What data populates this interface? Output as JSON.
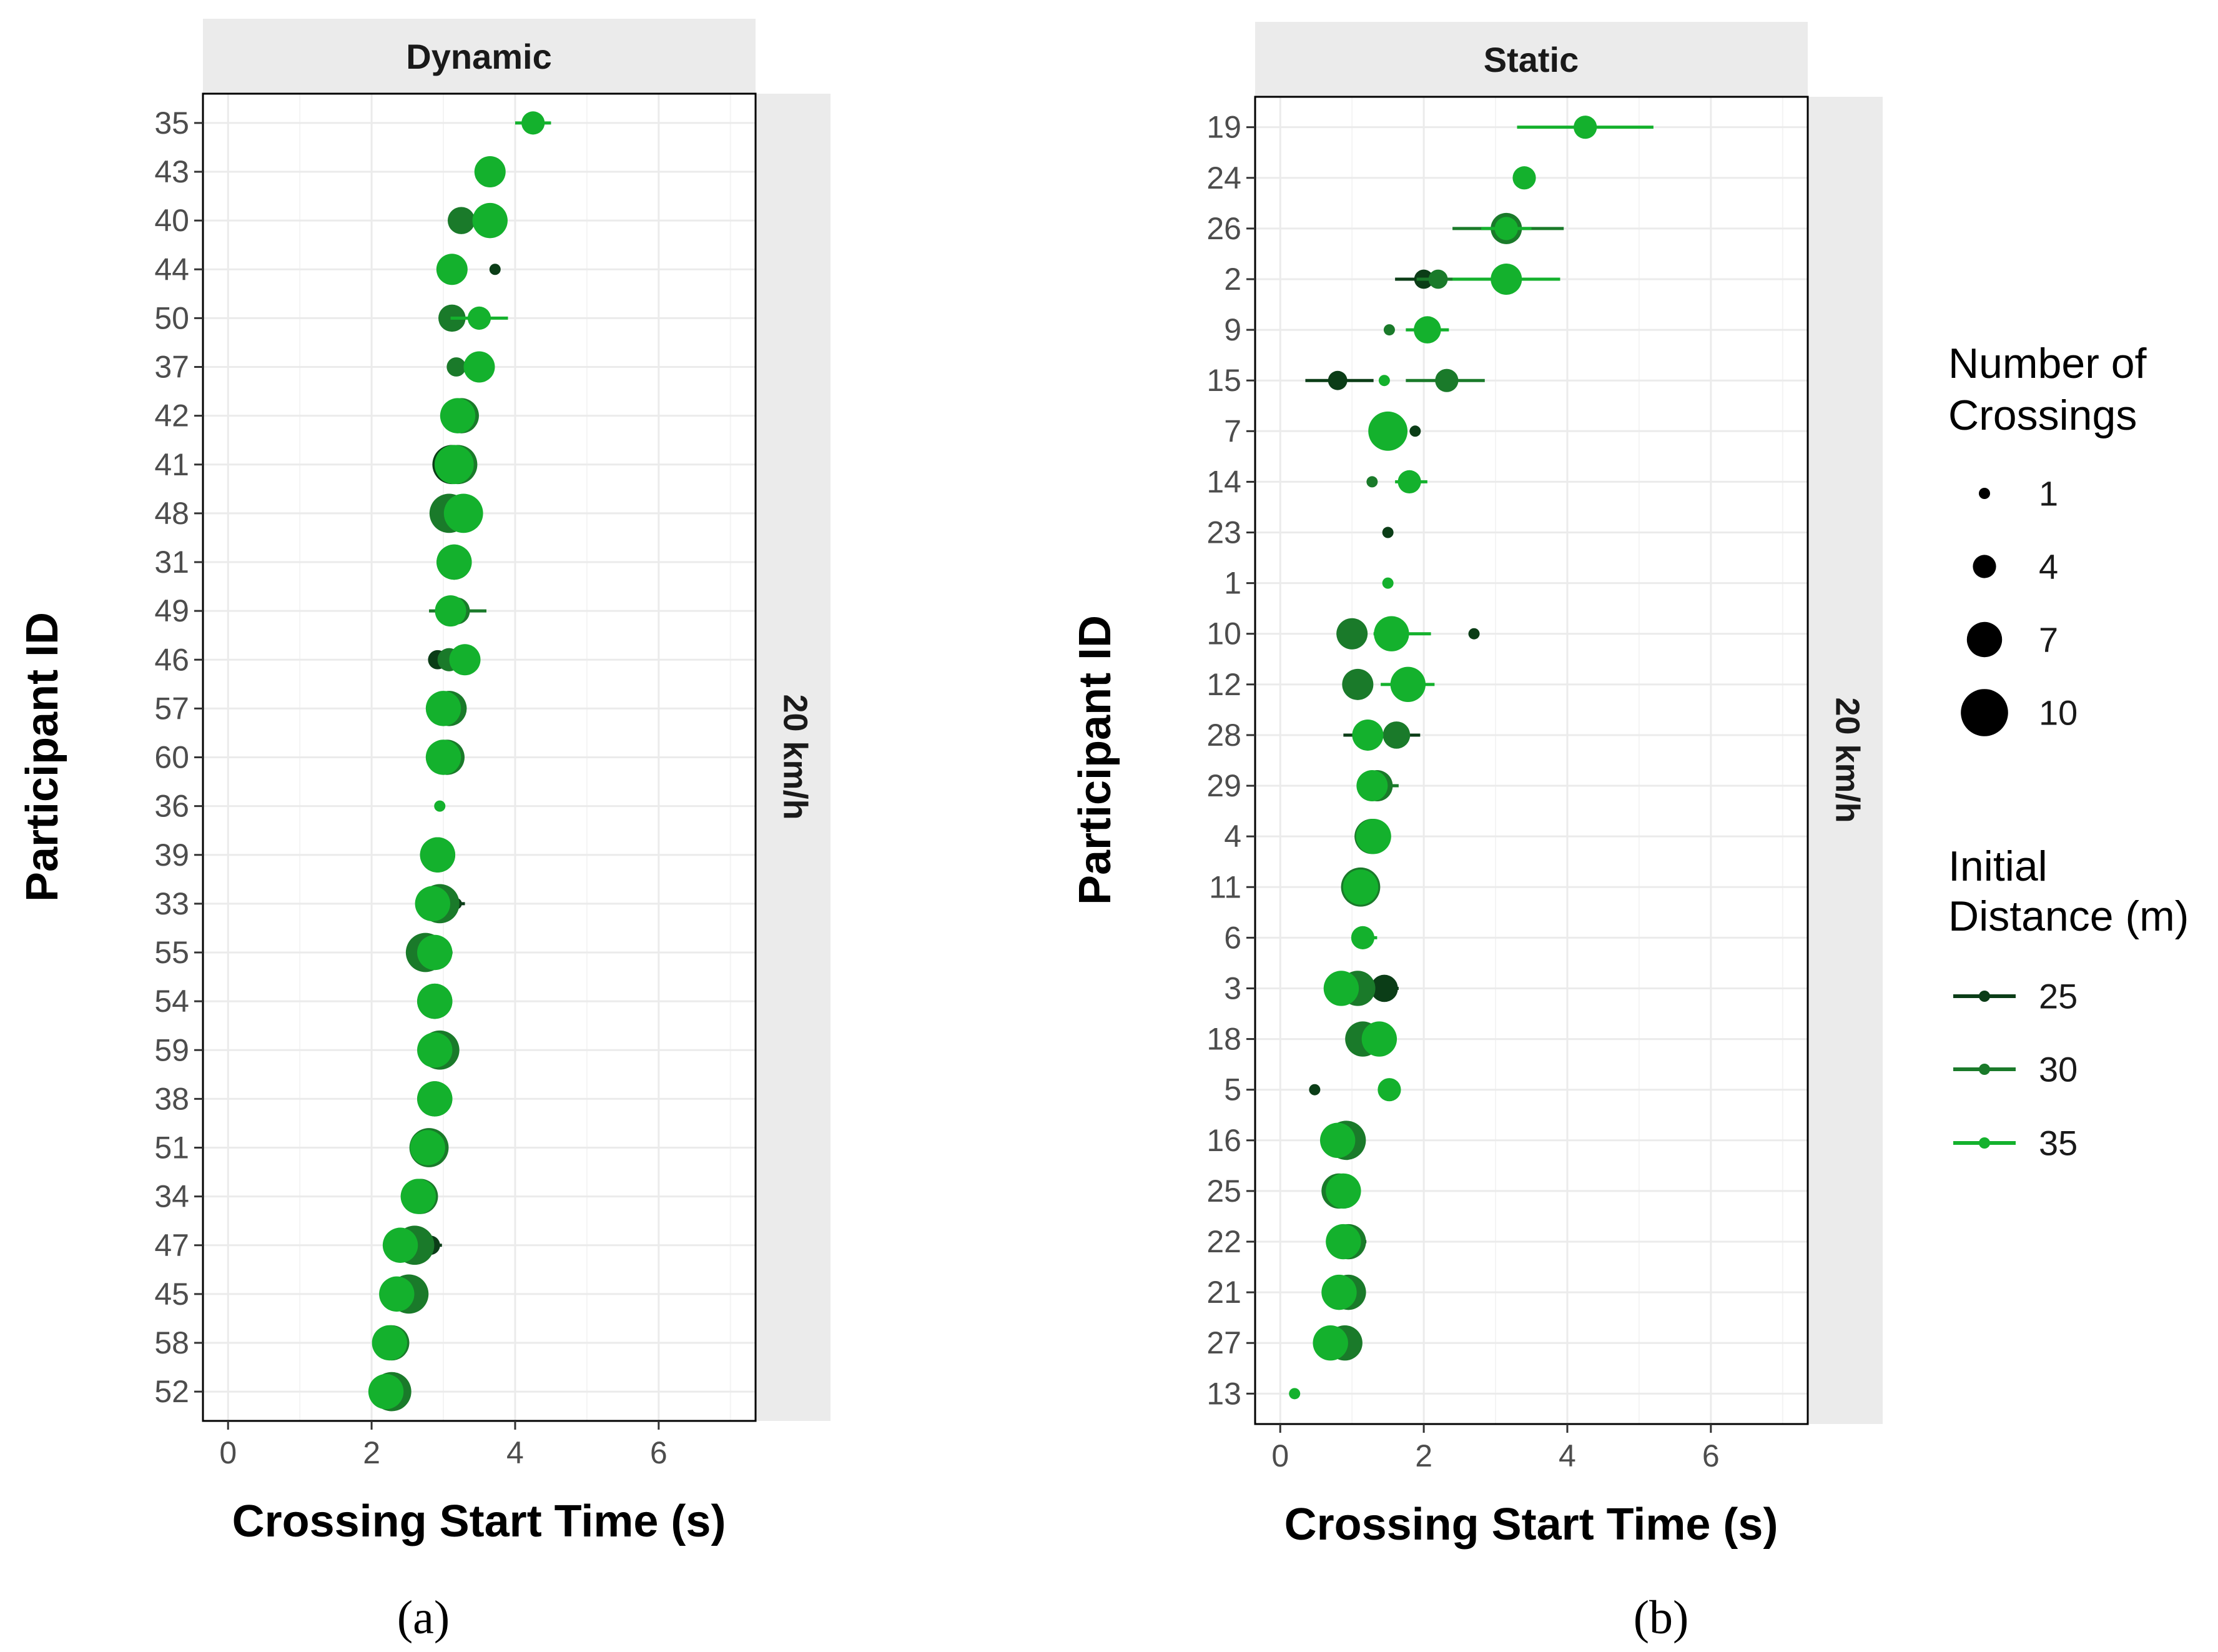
{
  "chart_data": [
    {
      "type": "scatter",
      "panel_label": "(a)",
      "title": "Dynamic",
      "facet_label": "20 km/h",
      "xlabel": "Crossing Start Time (s)",
      "ylabel": "Participant ID",
      "xlim": [
        -0.35,
        7.35
      ],
      "xticks": [
        "0",
        "2",
        "4",
        "6"
      ],
      "xtick_values": [
        0,
        2,
        4,
        6
      ],
      "grid": true,
      "participants": [
        "35",
        "43",
        "40",
        "44",
        "50",
        "37",
        "42",
        "41",
        "48",
        "31",
        "49",
        "46",
        "57",
        "60",
        "36",
        "39",
        "33",
        "55",
        "54",
        "59",
        "38",
        "51",
        "34",
        "47",
        "45",
        "58",
        "52"
      ],
      "points": [
        {
          "id": "35",
          "series": "35",
          "x": 4.25,
          "n": 4,
          "err": [
            4.0,
            4.5
          ]
        },
        {
          "id": "43",
          "series": "35",
          "x": 3.65,
          "n": 6,
          "err": [
            3.45,
            3.85
          ]
        },
        {
          "id": "40",
          "series": "30",
          "x": 3.25,
          "n": 5
        },
        {
          "id": "40",
          "series": "35",
          "x": 3.65,
          "n": 7
        },
        {
          "id": "44",
          "series": "25",
          "x": 3.72,
          "n": 1
        },
        {
          "id": "44",
          "series": "35",
          "x": 3.12,
          "n": 6
        },
        {
          "id": "50",
          "series": "30",
          "x": 3.12,
          "n": 5
        },
        {
          "id": "50",
          "series": "35",
          "x": 3.5,
          "n": 4,
          "err": [
            3.1,
            3.9
          ]
        },
        {
          "id": "37",
          "series": "30",
          "x": 3.18,
          "n": 3
        },
        {
          "id": "37",
          "series": "35",
          "x": 3.5,
          "n": 6
        },
        {
          "id": "42",
          "series": "30",
          "x": 3.25,
          "n": 7
        },
        {
          "id": "42",
          "series": "35",
          "x": 3.2,
          "n": 7
        },
        {
          "id": "41",
          "series": "25",
          "x": 3.12,
          "n": 8
        },
        {
          "id": "41",
          "series": "30",
          "x": 3.2,
          "n": 8
        },
        {
          "id": "41",
          "series": "35",
          "x": 3.15,
          "n": 8
        },
        {
          "id": "48",
          "series": "30",
          "x": 3.08,
          "n": 8
        },
        {
          "id": "48",
          "series": "35",
          "x": 3.28,
          "n": 8
        },
        {
          "id": "31",
          "series": "30",
          "x": 3.15,
          "n": 7
        },
        {
          "id": "31",
          "series": "35",
          "x": 3.15,
          "n": 7
        },
        {
          "id": "49",
          "series": "30",
          "x": 3.18,
          "n": 5,
          "err": [
            2.8,
            3.6
          ]
        },
        {
          "id": "49",
          "series": "35",
          "x": 3.1,
          "n": 6
        },
        {
          "id": "46",
          "series": "25",
          "x": 2.92,
          "n": 3
        },
        {
          "id": "46",
          "series": "30",
          "x": 3.08,
          "n": 4
        },
        {
          "id": "46",
          "series": "35",
          "x": 3.3,
          "n": 6
        },
        {
          "id": "57",
          "series": "30",
          "x": 3.08,
          "n": 7
        },
        {
          "id": "57",
          "series": "35",
          "x": 3.0,
          "n": 7
        },
        {
          "id": "60",
          "series": "30",
          "x": 3.05,
          "n": 7
        },
        {
          "id": "60",
          "series": "35",
          "x": 3.0,
          "n": 7
        },
        {
          "id": "36",
          "series": "35",
          "x": 2.95,
          "n": 1
        },
        {
          "id": "39",
          "series": "30",
          "x": 2.92,
          "n": 7
        },
        {
          "id": "39",
          "series": "35",
          "x": 2.92,
          "n": 7
        },
        {
          "id": "33",
          "series": "25",
          "x": 3.18,
          "n": 1,
          "err": [
            3.0,
            3.3
          ]
        },
        {
          "id": "33",
          "series": "30",
          "x": 2.95,
          "n": 8
        },
        {
          "id": "33",
          "series": "35",
          "x": 2.85,
          "n": 7
        },
        {
          "id": "55",
          "series": "25",
          "x": 3.05,
          "n": 1
        },
        {
          "id": "55",
          "series": "30",
          "x": 2.75,
          "n": 8
        },
        {
          "id": "55",
          "series": "35",
          "x": 2.88,
          "n": 7
        },
        {
          "id": "54",
          "series": "30",
          "x": 2.88,
          "n": 7
        },
        {
          "id": "54",
          "series": "35",
          "x": 2.88,
          "n": 7
        },
        {
          "id": "59",
          "series": "25",
          "x": 3.1,
          "n": 1
        },
        {
          "id": "59",
          "series": "30",
          "x": 2.95,
          "n": 8
        },
        {
          "id": "59",
          "series": "35",
          "x": 2.88,
          "n": 7
        },
        {
          "id": "38",
          "series": "30",
          "x": 2.88,
          "n": 7
        },
        {
          "id": "38",
          "series": "35",
          "x": 2.88,
          "n": 7
        },
        {
          "id": "51",
          "series": "30",
          "x": 2.8,
          "n": 8
        },
        {
          "id": "51",
          "series": "35",
          "x": 2.78,
          "n": 7
        },
        {
          "id": "34",
          "series": "30",
          "x": 2.68,
          "n": 7
        },
        {
          "id": "34",
          "series": "35",
          "x": 2.65,
          "n": 7
        },
        {
          "id": "47",
          "series": "25",
          "x": 2.82,
          "n": 3,
          "err": [
            2.6,
            2.98
          ]
        },
        {
          "id": "47",
          "series": "30",
          "x": 2.6,
          "n": 8
        },
        {
          "id": "47",
          "series": "35",
          "x": 2.4,
          "n": 7
        },
        {
          "id": "45",
          "series": "30",
          "x": 2.52,
          "n": 8
        },
        {
          "id": "45",
          "series": "35",
          "x": 2.35,
          "n": 7
        },
        {
          "id": "58",
          "series": "30",
          "x": 2.28,
          "n": 7
        },
        {
          "id": "58",
          "series": "35",
          "x": 2.25,
          "n": 7
        },
        {
          "id": "52",
          "series": "30",
          "x": 2.28,
          "n": 8
        },
        {
          "id": "52",
          "series": "35",
          "x": 2.2,
          "n": 7
        }
      ]
    },
    {
      "type": "scatter",
      "panel_label": "(b)",
      "title": "Static",
      "facet_label": "20 km/h",
      "xlabel": "Crossing Start Time (s)",
      "ylabel": "Participant ID",
      "xlim": [
        -0.35,
        7.35
      ],
      "xticks": [
        "0",
        "2",
        "4",
        "6"
      ],
      "xtick_values": [
        0,
        2,
        4,
        6
      ],
      "grid": true,
      "participants": [
        "19",
        "24",
        "26",
        "2",
        "9",
        "15",
        "7",
        "14",
        "23",
        "1",
        "10",
        "12",
        "28",
        "29",
        "4",
        "11",
        "6",
        "3",
        "18",
        "5",
        "16",
        "25",
        "22",
        "21",
        "27",
        "13"
      ],
      "points": [
        {
          "id": "19",
          "series": "35",
          "x": 4.25,
          "n": 4,
          "err": [
            3.3,
            5.2
          ]
        },
        {
          "id": "24",
          "series": "35",
          "x": 3.4,
          "n": 4,
          "err": [
            3.3,
            3.5
          ]
        },
        {
          "id": "26",
          "series": "30",
          "x": 3.15,
          "n": 6,
          "err": [
            2.4,
            3.95
          ]
        },
        {
          "id": "26",
          "series": "35",
          "x": 3.15,
          "n": 4,
          "err": [
            2.8,
            3.5
          ]
        },
        {
          "id": "2",
          "series": "25",
          "x": 2.0,
          "n": 3,
          "err": [
            1.6,
            2.4
          ]
        },
        {
          "id": "2",
          "series": "30",
          "x": 2.2,
          "n": 3,
          "err": [
            1.9,
            2.5
          ]
        },
        {
          "id": "2",
          "series": "35",
          "x": 3.15,
          "n": 6,
          "err": [
            2.4,
            3.9
          ]
        },
        {
          "id": "9",
          "series": "30",
          "x": 1.52,
          "n": 1
        },
        {
          "id": "9",
          "series": "35",
          "x": 2.05,
          "n": 5,
          "err": [
            1.75,
            2.35
          ]
        },
        {
          "id": "15",
          "series": "25",
          "x": 0.8,
          "n": 3,
          "err": [
            0.35,
            1.3
          ]
        },
        {
          "id": "15",
          "series": "30",
          "x": 2.32,
          "n": 4,
          "err": [
            1.75,
            2.85
          ]
        },
        {
          "id": "15",
          "series": "35",
          "x": 1.45,
          "n": 1
        },
        {
          "id": "7",
          "series": "25",
          "x": 1.88,
          "n": 1
        },
        {
          "id": "7",
          "series": "35",
          "x": 1.5,
          "n": 8
        },
        {
          "id": "14",
          "series": "30",
          "x": 1.28,
          "n": 1
        },
        {
          "id": "14",
          "series": "35",
          "x": 1.8,
          "n": 4,
          "err": [
            1.6,
            2.05
          ]
        },
        {
          "id": "23",
          "series": "25",
          "x": 1.5,
          "n": 1
        },
        {
          "id": "1",
          "series": "35",
          "x": 1.5,
          "n": 1
        },
        {
          "id": "10",
          "series": "30",
          "x": 1.0,
          "n": 6
        },
        {
          "id": "10",
          "series": "35",
          "x": 1.55,
          "n": 7,
          "err": [
            1.3,
            2.1
          ]
        },
        {
          "id": "10",
          "series": "25",
          "x": 2.7,
          "n": 1
        },
        {
          "id": "12",
          "series": "30",
          "x": 1.08,
          "n": 6,
          "err": [
            0.95,
            1.2
          ]
        },
        {
          "id": "12",
          "series": "35",
          "x": 1.78,
          "n": 7,
          "err": [
            1.4,
            2.15
          ]
        },
        {
          "id": "28",
          "series": "25",
          "x": 1.2,
          "n": 4,
          "err": [
            0.88,
            1.95
          ]
        },
        {
          "id": "28",
          "series": "30",
          "x": 1.62,
          "n": 5
        },
        {
          "id": "28",
          "series": "35",
          "x": 1.22,
          "n": 6
        },
        {
          "id": "29",
          "series": "30",
          "x": 1.35,
          "n": 6,
          "err": [
            1.15,
            1.65
          ]
        },
        {
          "id": "29",
          "series": "35",
          "x": 1.28,
          "n": 6
        },
        {
          "id": "4",
          "series": "30",
          "x": 1.28,
          "n": 7
        },
        {
          "id": "4",
          "series": "35",
          "x": 1.3,
          "n": 7
        },
        {
          "id": "11",
          "series": "30",
          "x": 1.12,
          "n": 8
        },
        {
          "id": "11",
          "series": "35",
          "x": 1.12,
          "n": 7
        },
        {
          "id": "6",
          "series": "35",
          "x": 1.15,
          "n": 4,
          "err": [
            1.0,
            1.35
          ]
        },
        {
          "id": "3",
          "series": "25",
          "x": 1.45,
          "n": 5,
          "err": [
            1.3,
            1.65
          ]
        },
        {
          "id": "3",
          "series": "30",
          "x": 1.08,
          "n": 7
        },
        {
          "id": "3",
          "series": "35",
          "x": 0.85,
          "n": 7
        },
        {
          "id": "18",
          "series": "30",
          "x": 1.15,
          "n": 7
        },
        {
          "id": "18",
          "series": "35",
          "x": 1.38,
          "n": 7
        },
        {
          "id": "5",
          "series": "25",
          "x": 0.48,
          "n": 1
        },
        {
          "id": "5",
          "series": "35",
          "x": 1.52,
          "n": 4
        },
        {
          "id": "16",
          "series": "30",
          "x": 0.92,
          "n": 8
        },
        {
          "id": "16",
          "series": "35",
          "x": 0.8,
          "n": 7
        },
        {
          "id": "25",
          "series": "30",
          "x": 0.82,
          "n": 7
        },
        {
          "id": "25",
          "series": "35",
          "x": 0.88,
          "n": 7
        },
        {
          "id": "22",
          "series": "25",
          "x": 1.05,
          "n": 1,
          "err": [
            0.95,
            1.2
          ]
        },
        {
          "id": "22",
          "series": "30",
          "x": 0.95,
          "n": 7
        },
        {
          "id": "22",
          "series": "35",
          "x": 0.88,
          "n": 7
        },
        {
          "id": "21",
          "series": "30",
          "x": 0.95,
          "n": 7
        },
        {
          "id": "21",
          "series": "35",
          "x": 0.82,
          "n": 7
        },
        {
          "id": "27",
          "series": "30",
          "x": 0.9,
          "n": 7
        },
        {
          "id": "27",
          "series": "35",
          "x": 0.7,
          "n": 7
        },
        {
          "id": "13",
          "series": "35",
          "x": 0.2,
          "n": 1
        }
      ]
    }
  ],
  "legend": {
    "size_title_line1": "Number of",
    "size_title_line2": "Crossings",
    "size_labels": [
      "1",
      "4",
      "7",
      "10"
    ],
    "size_values": [
      1,
      4,
      7,
      10
    ],
    "color_title_line1": "Initial",
    "color_title_line2": "Distance (m)",
    "color_labels": [
      "25",
      "30",
      "35"
    ]
  },
  "colors": {
    "25": "#0b3d17",
    "30": "#1a7a2a",
    "35": "#14b12d",
    "strip": "#ebebeb",
    "grid": "#ebebeb"
  }
}
